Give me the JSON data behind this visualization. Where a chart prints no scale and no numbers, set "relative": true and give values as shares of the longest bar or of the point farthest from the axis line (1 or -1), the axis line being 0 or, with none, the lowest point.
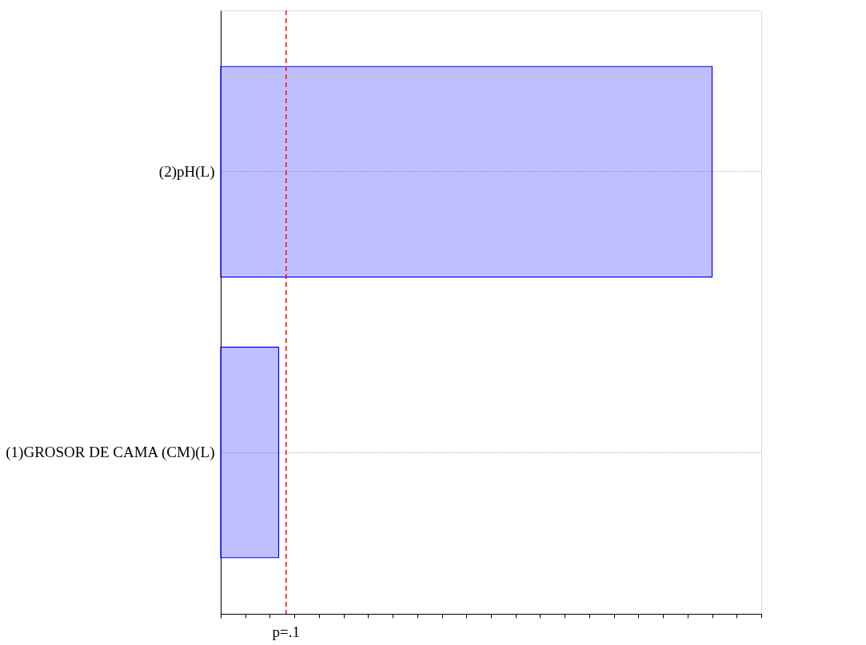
{
  "chart_data": {
    "type": "bar",
    "orientation": "horizontal",
    "relative": true,
    "categories": [
      "(2)pH(L)",
      "(1)GROSOR DE CAMA (CM)(L)"
    ],
    "values": [
      1,
      0.118
    ],
    "color": "#0000ff",
    "ref_lines": [
      {
        "axis": "x",
        "value": 0.133,
        "label": "p=.1",
        "color": "#ff0000",
        "line_style": "dashed"
      }
    ],
    "grid": "y",
    "tick_labels": "y"
  }
}
